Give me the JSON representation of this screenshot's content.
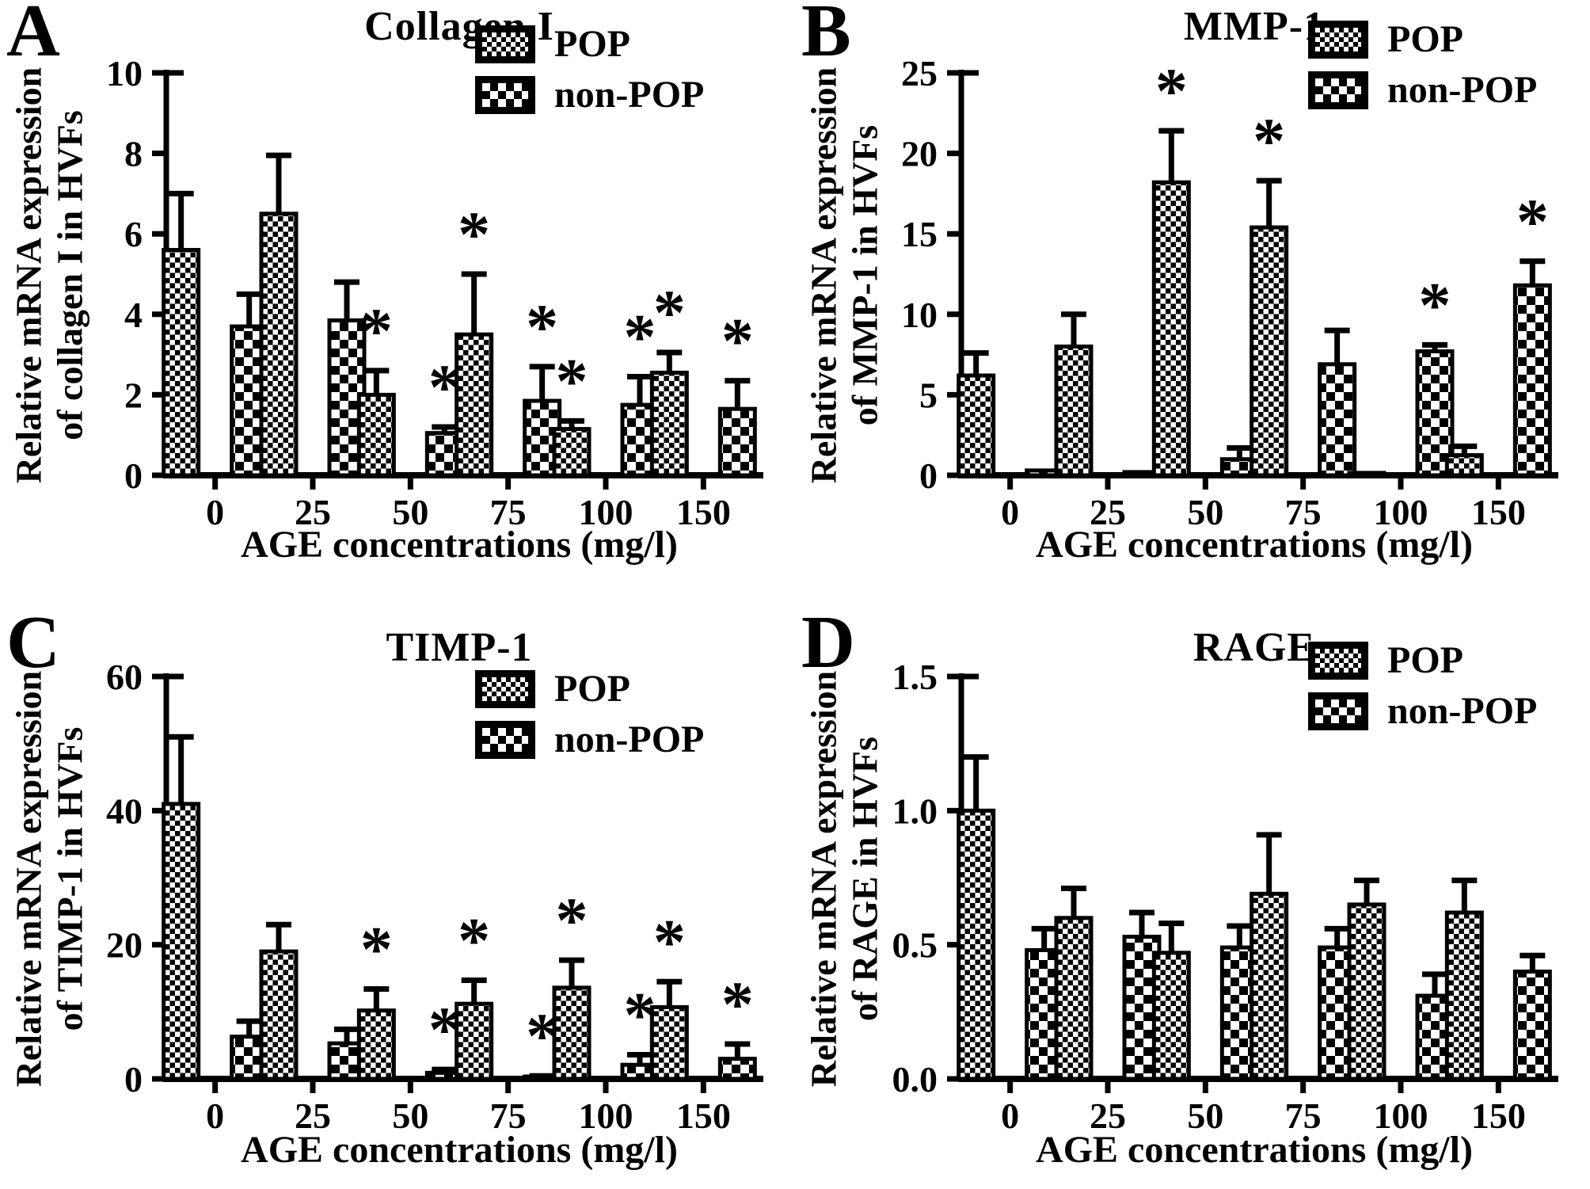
{
  "figure": {
    "background": "#ffffff",
    "ink": "#000000",
    "legend": {
      "pop": "POP",
      "non_pop": "non-POP"
    }
  },
  "chart_data": [
    {
      "type": "bar",
      "panel": "A",
      "title": "Collagen I",
      "ylabel_lines": [
        "Relative mRNA expression",
        "of collagen I in HVFs"
      ],
      "xlabel": "AGE concentrations (mg/l)",
      "categories": [
        "0",
        "25",
        "50",
        "75",
        "100",
        "150"
      ],
      "ylim": [
        0,
        10
      ],
      "yticks": [
        0,
        2,
        4,
        6,
        8,
        10
      ],
      "ytick_labels": [
        "0",
        "2",
        "4",
        "6",
        "8",
        "10"
      ],
      "grid": false,
      "legend_position": "top-right",
      "sig_marker": "*",
      "series": [
        {
          "name": "POP",
          "pattern": "fine-checker",
          "values": [
            5.6,
            6.5,
            2.0,
            3.5,
            1.15,
            2.55
          ],
          "errors": [
            1.4,
            1.45,
            0.6,
            1.5,
            0.2,
            0.5
          ],
          "sig": [
            false,
            false,
            true,
            true,
            true,
            true
          ]
        },
        {
          "name": "non-POP",
          "pattern": "coarse-checker",
          "values": [
            3.7,
            3.85,
            1.05,
            1.85,
            1.75,
            1.65
          ],
          "errors": [
            0.8,
            0.95,
            0.15,
            0.85,
            0.7,
            0.7
          ],
          "sig": [
            false,
            false,
            true,
            true,
            true,
            true
          ]
        }
      ]
    },
    {
      "type": "bar",
      "panel": "B",
      "title": "MMP-1",
      "ylabel_lines": [
        "Relative mRNA expression",
        "of MMP-1 in HVFs"
      ],
      "xlabel": "AGE concentrations (mg/l)",
      "categories": [
        "0",
        "25",
        "50",
        "75",
        "100",
        "150"
      ],
      "ylim": [
        0,
        25
      ],
      "yticks": [
        0,
        5,
        10,
        15,
        20,
        25
      ],
      "ytick_labels": [
        "0",
        "5",
        "10",
        "15",
        "20",
        "25"
      ],
      "grid": false,
      "legend_position": "top-right",
      "sig_marker": "*",
      "series": [
        {
          "name": "POP",
          "pattern": "fine-checker",
          "values": [
            6.2,
            8.0,
            18.2,
            15.4,
            0.15,
            1.25
          ],
          "errors": [
            1.4,
            2.0,
            3.2,
            2.9,
            0,
            0.55
          ],
          "sig": [
            false,
            false,
            true,
            true,
            false,
            false
          ]
        },
        {
          "name": "non-POP",
          "pattern": "coarse-checker",
          "values": [
            0.3,
            0.2,
            1.0,
            6.9,
            7.7,
            11.8
          ],
          "errors": [
            0,
            0,
            0.7,
            2.1,
            0.4,
            1.5
          ],
          "sig": [
            false,
            false,
            false,
            false,
            true,
            true
          ]
        }
      ]
    },
    {
      "type": "bar",
      "panel": "C",
      "title": "TIMP-1",
      "ylabel_lines": [
        "Relative mRNA expression",
        "of TIMP-1 in HVFs"
      ],
      "xlabel": "AGE concentrations (mg/l)",
      "categories": [
        "0",
        "25",
        "50",
        "75",
        "100",
        "150"
      ],
      "ylim": [
        0,
        60
      ],
      "yticks": [
        0,
        20,
        40,
        60
      ],
      "ytick_labels": [
        "0",
        "20",
        "40",
        "60"
      ],
      "grid": false,
      "legend_position": "top-right",
      "sig_marker": "*",
      "series": [
        {
          "name": "POP",
          "pattern": "fine-checker",
          "values": [
            41,
            19,
            10.2,
            11.2,
            13.6,
            10.7
          ],
          "errors": [
            10,
            4,
            3.2,
            3.5,
            4.1,
            3.8
          ],
          "sig": [
            false,
            false,
            true,
            true,
            true,
            true
          ]
        },
        {
          "name": "non-POP",
          "pattern": "coarse-checker",
          "values": [
            6.3,
            5.3,
            0.9,
            0.3,
            2.1,
            3.0
          ],
          "errors": [
            2.3,
            2.1,
            0.5,
            0.15,
            1.5,
            2.2
          ],
          "sig": [
            false,
            false,
            true,
            true,
            true,
            true
          ]
        }
      ]
    },
    {
      "type": "bar",
      "panel": "D",
      "title": "RAGE",
      "ylabel_lines": [
        "Relative mRNA expression",
        "of RAGE in HVFs"
      ],
      "xlabel": "AGE concentrations (mg/l)",
      "categories": [
        "0",
        "25",
        "50",
        "75",
        "100",
        "150"
      ],
      "ylim": [
        0,
        1.5
      ],
      "yticks": [
        0,
        0.5,
        1.0,
        1.5
      ],
      "ytick_labels": [
        "0.0",
        "0.5",
        "1.0",
        "1.5"
      ],
      "grid": false,
      "legend_position": "top-right",
      "sig_marker": "*",
      "series": [
        {
          "name": "POP",
          "pattern": "fine-checker",
          "values": [
            1.0,
            0.6,
            0.47,
            0.69,
            0.65,
            0.62
          ],
          "errors": [
            0.2,
            0.11,
            0.11,
            0.22,
            0.09,
            0.12
          ],
          "sig": [
            false,
            false,
            false,
            false,
            false,
            false
          ]
        },
        {
          "name": "non-POP",
          "pattern": "coarse-checker",
          "values": [
            0.48,
            0.53,
            0.49,
            0.49,
            0.31,
            0.4
          ],
          "errors": [
            0.08,
            0.09,
            0.08,
            0.07,
            0.08,
            0.06
          ],
          "sig": [
            false,
            false,
            false,
            false,
            false,
            false
          ]
        }
      ]
    }
  ]
}
